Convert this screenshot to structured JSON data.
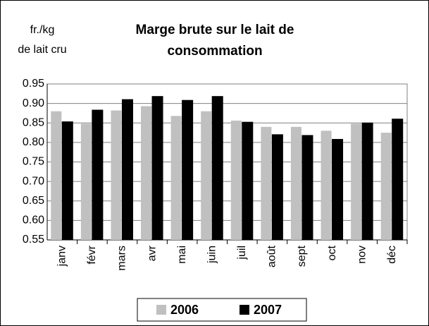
{
  "chart_data": {
    "type": "bar",
    "title": [
      "Marge brute sur le lait de",
      "consommation"
    ],
    "y_label": [
      "fr./kg",
      "de lait cru"
    ],
    "categories": [
      "janv",
      "févr",
      "mars",
      "avr",
      "mai",
      "juin",
      "juil",
      "août",
      "sept",
      "oct",
      "nov",
      "déc"
    ],
    "series": [
      {
        "name": "2006",
        "color": "#c0c0c0",
        "values": [
          0.88,
          0.848,
          0.882,
          0.893,
          0.868,
          0.88,
          0.856,
          0.84,
          0.84,
          0.83,
          0.848,
          0.825
        ]
      },
      {
        "name": "2007",
        "color": "#000000",
        "values": [
          0.853,
          0.883,
          0.91,
          0.918,
          0.908,
          0.918,
          0.852,
          0.82,
          0.818,
          0.808,
          0.85,
          0.86
        ]
      }
    ],
    "ylim": [
      0.55,
      0.95
    ],
    "yticks": [
      0.95,
      {
        "value": 0.9,
        "label": "0.90"
      },
      0.85,
      {
        "value": 0.8,
        "label": "0.80"
      },
      0.75,
      {
        "value": 0.7,
        "label": "0.70"
      },
      0.65,
      {
        "value": 0.6,
        "label": "0.60"
      },
      0.55
    ],
    "grid": true,
    "legend": "bottom"
  }
}
